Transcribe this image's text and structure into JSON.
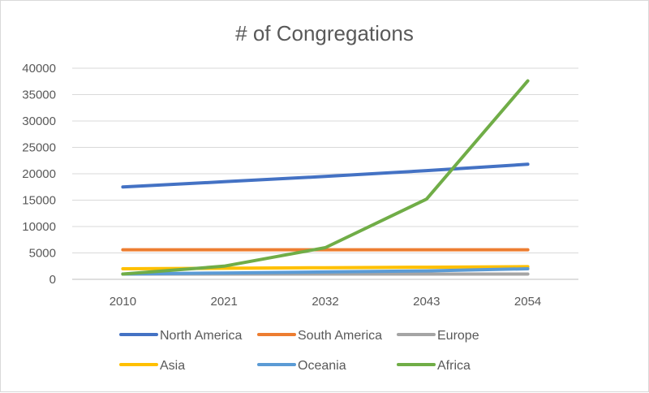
{
  "chart_data": {
    "type": "line",
    "title": "# of Congregations",
    "xlabel": "",
    "ylabel": "",
    "categories": [
      "2010",
      "2021",
      "2032",
      "2043",
      "2054"
    ],
    "ylim": [
      0,
      40000
    ],
    "yticks": [
      0,
      5000,
      10000,
      15000,
      20000,
      25000,
      30000,
      35000,
      40000
    ],
    "grid": true,
    "legend_position": "bottom",
    "series": [
      {
        "name": "North America",
        "color": "#4472C4",
        "values": [
          17500,
          18500,
          19500,
          20600,
          21800
        ]
      },
      {
        "name": "South America",
        "color": "#ED7D31",
        "values": [
          5600,
          5600,
          5600,
          5600,
          5600
        ]
      },
      {
        "name": "Europe",
        "color": "#A5A5A5",
        "values": [
          1000,
          1000,
          1000,
          1000,
          1000
        ]
      },
      {
        "name": "Asia",
        "color": "#FFC000",
        "values": [
          2000,
          2100,
          2200,
          2300,
          2400
        ]
      },
      {
        "name": "Oceania",
        "color": "#5B9BD5",
        "values": [
          1000,
          1200,
          1400,
          1600,
          2000
        ]
      },
      {
        "name": "Africa",
        "color": "#70AD47",
        "values": [
          1000,
          2500,
          6000,
          15200,
          37600
        ]
      }
    ]
  }
}
